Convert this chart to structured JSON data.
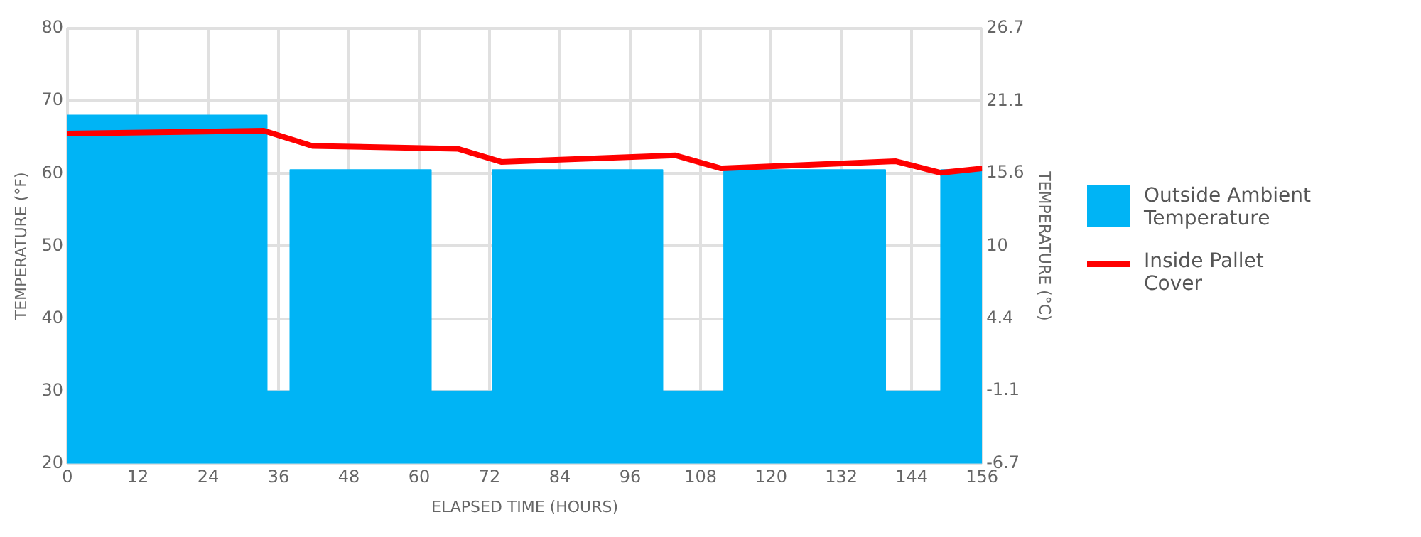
{
  "chart_data": {
    "type": "line",
    "xlabel": "ELAPSED TIME (HOURS)",
    "ylabel": "TEMPERATURE (°F)",
    "y2label": "TEMPERATURE (°C)",
    "xlim": [
      0,
      156
    ],
    "xticks": [
      0,
      12,
      24,
      36,
      48,
      60,
      72,
      84,
      96,
      108,
      120,
      132,
      144,
      156
    ],
    "ylim": [
      20,
      80
    ],
    "yticks": [
      20,
      30,
      40,
      50,
      60,
      70,
      80
    ],
    "y2lim": [
      -6.7,
      26.7
    ],
    "y2ticks": [
      -6.7,
      -1.1,
      4.4,
      10,
      15.6,
      21.1,
      26.7
    ],
    "grid": true,
    "legend": "right",
    "marker": "none",
    "series": [
      {
        "name": "Outside Ambient Temperature",
        "type": "area",
        "color": "#00b4f5",
        "x": [
          0,
          34,
          34,
          38,
          38,
          62,
          62,
          72.5,
          72.5,
          101.5,
          101.5,
          112,
          112,
          139.5,
          139.5,
          149,
          149,
          156
        ],
        "values": [
          68,
          68,
          30,
          30,
          60.5,
          60.5,
          30,
          30,
          60.5,
          60.5,
          30,
          30,
          60.5,
          60.5,
          30,
          30,
          60.5,
          60.5
        ]
      },
      {
        "name": "Inside Pallet Cover",
        "color": "#ff0000",
        "x": [
          0,
          33.5,
          41.8,
          66.6,
          74,
          103.7,
          111.5,
          141.2,
          148.9,
          156
        ],
        "values": [
          65.5,
          65.9,
          63.8,
          63.4,
          61.6,
          62.5,
          60.7,
          61.7,
          60.1,
          60.7
        ]
      }
    ]
  }
}
